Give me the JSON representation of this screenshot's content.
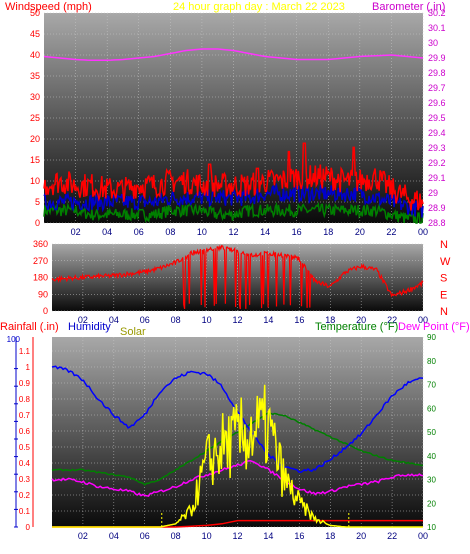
{
  "header": {
    "title": "24 hour graph day : March 22 2023",
    "left_label": "Windspeed (mph)",
    "right_label": "Barometer (.in)"
  },
  "x_ticks": [
    "02",
    "04",
    "06",
    "08",
    "10",
    "12",
    "14",
    "16",
    "18",
    "20",
    "22",
    "00"
  ],
  "colors": {
    "wind_axis": "#ff0000",
    "baro_axis": "#cc00cc",
    "title": "#ffff00",
    "wind_gust": "#ff0000",
    "wind_avg": "#0000cc",
    "wind_low": "#008000",
    "barometer": "#ff33ff",
    "direction": "#ff0000",
    "rain": "#ff0000",
    "humidity": "#0000ff",
    "solar": "#ffff00",
    "temperature": "#008000",
    "dewpoint": "#ff00ff",
    "temp_label": "#008000"
  },
  "chart_data": [
    {
      "type": "line",
      "name": "wind-barometer",
      "title": "24 hour graph day : March 22 2023",
      "ylabel_left": "Windspeed (mph)",
      "ylabel_right": "Barometer (.in)",
      "left_ticks": [
        0,
        5,
        10,
        15,
        20,
        25,
        30,
        35,
        40,
        45,
        50
      ],
      "right_ticks": [
        "28.8",
        "28.9",
        "29",
        "29.1",
        "29.2",
        "29.3",
        "29.4",
        "29.5",
        "29.6",
        "29.7",
        "29.8",
        "29.9",
        "30",
        "30.1",
        "30.2"
      ],
      "ylim_left": [
        0,
        50
      ],
      "ylim_right": [
        28.8,
        30.2
      ],
      "x": [
        0,
        1,
        2,
        3,
        4,
        5,
        6,
        7,
        8,
        9,
        10,
        11,
        12,
        13,
        14,
        15,
        16,
        17,
        18,
        19,
        20,
        21,
        22,
        23,
        24
      ],
      "series": [
        {
          "role": "gust",
          "axis": "left",
          "values": [
            9,
            10,
            9,
            9,
            8,
            8,
            9,
            9,
            10,
            10,
            9,
            9,
            9,
            9,
            10,
            10,
            11,
            11,
            11,
            10,
            10,
            11,
            8,
            6,
            5
          ],
          "spikes": [
            [
              15.5,
              17
            ],
            [
              16.5,
              19
            ],
            [
              19.6,
              18
            ],
            [
              13.5,
              13
            ],
            [
              10.5,
              14
            ]
          ]
        },
        {
          "role": "average",
          "axis": "left",
          "values": [
            5,
            5,
            5,
            5,
            5,
            5,
            5,
            5,
            6,
            6,
            6,
            6,
            6,
            6,
            7,
            7,
            7,
            7,
            7,
            7,
            7,
            6,
            5,
            4,
            3
          ]
        },
        {
          "role": "low",
          "axis": "left",
          "values": [
            3,
            3,
            3,
            2,
            2,
            2,
            2,
            2,
            3,
            3,
            3,
            2,
            2,
            3,
            3,
            3,
            3,
            3,
            3,
            3,
            3,
            3,
            2,
            1,
            1
          ]
        },
        {
          "role": "barometer",
          "axis": "right",
          "values": [
            29.91,
            29.9,
            29.89,
            29.885,
            29.885,
            29.89,
            29.9,
            29.91,
            29.93,
            29.95,
            29.96,
            29.96,
            29.95,
            29.93,
            29.91,
            29.9,
            29.89,
            29.89,
            29.89,
            29.9,
            29.91,
            29.915,
            29.92,
            29.91,
            29.9
          ]
        }
      ]
    },
    {
      "type": "line",
      "name": "wind-direction",
      "left_ticks": [
        0,
        90,
        180,
        270,
        360
      ],
      "right_labels": [
        "N",
        "W",
        "S",
        "E",
        "N"
      ],
      "ylim": [
        0,
        360
      ],
      "x": [
        0,
        1,
        2,
        3,
        4,
        5,
        6,
        7,
        8,
        9,
        10,
        11,
        12,
        13,
        14,
        15,
        16,
        17,
        18,
        19,
        20,
        21,
        22,
        23,
        24
      ],
      "values": [
        170,
        175,
        180,
        185,
        190,
        200,
        210,
        230,
        260,
        310,
        330,
        340,
        320,
        300,
        310,
        300,
        280,
        160,
        130,
        210,
        240,
        220,
        80,
        110,
        150
      ]
    },
    {
      "type": "line",
      "name": "rain-humidity-solar-temperature",
      "labels": {
        "rainfall": "Rainfall (.in)",
        "humidity": "Humidity",
        "solar": "Solar",
        "temperature": "Temperature (°F)",
        "dewpoint": "Dew Point (°F)"
      },
      "left_ticks": [
        "0",
        "0.1",
        "0.2",
        "0.3",
        "0.4",
        "0.5",
        "0.6",
        "0.7",
        "0.8",
        "0.9",
        "1",
        "1.1"
      ],
      "left_extra_top": "100",
      "right_ticks": [
        10,
        20,
        30,
        40,
        50,
        60,
        70,
        80,
        90
      ],
      "ylim_left": [
        0,
        1.1
      ],
      "ylim_right": [
        10,
        90
      ],
      "x": [
        0,
        1,
        2,
        3,
        4,
        5,
        6,
        7,
        8,
        9,
        10,
        11,
        12,
        13,
        14,
        15,
        16,
        17,
        18,
        19,
        20,
        21,
        22,
        23,
        24
      ],
      "series": [
        {
          "role": "humidity",
          "axis": "left_humidity_scaled",
          "values": [
            1.0,
            0.98,
            0.92,
            0.8,
            0.7,
            0.62,
            0.7,
            0.85,
            0.93,
            0.97,
            0.96,
            0.88,
            0.72,
            0.58,
            0.45,
            0.38,
            0.35,
            0.36,
            0.42,
            0.5,
            0.58,
            0.7,
            0.82,
            0.9,
            0.93
          ]
        },
        {
          "role": "temperature",
          "axis": "right",
          "values": [
            34,
            34,
            34,
            33,
            32,
            31,
            28,
            30,
            34,
            38,
            42,
            46,
            50,
            54,
            58,
            57,
            54,
            51,
            48,
            45,
            42,
            40,
            38,
            37,
            36
          ]
        },
        {
          "role": "dewpoint",
          "axis": "right",
          "values": [
            30,
            30,
            29,
            27,
            26,
            25,
            23,
            25,
            27,
            30,
            32,
            34,
            36,
            38,
            34,
            30,
            26,
            24,
            25,
            27,
            28,
            29,
            31,
            32,
            32
          ]
        },
        {
          "role": "rain",
          "axis": "left",
          "values": [
            0,
            0,
            0,
            0,
            0,
            0,
            0,
            0,
            0,
            0.005,
            0.01,
            0.02,
            0.04,
            0.04,
            0.04,
            0.04,
            0.04,
            0.04,
            0.04,
            0.04,
            0.04,
            0.04,
            0.04,
            0.04,
            0.04
          ]
        },
        {
          "role": "solar",
          "axis": "left",
          "values": [
            0,
            0,
            0,
            0,
            0,
            0,
            0,
            0,
            0.02,
            0.1,
            0.4,
            0.5,
            0.55,
            0.6,
            0.62,
            0.3,
            0.15,
            0.05,
            0.01,
            0,
            0,
            0,
            0,
            0,
            0
          ]
        }
      ]
    }
  ]
}
